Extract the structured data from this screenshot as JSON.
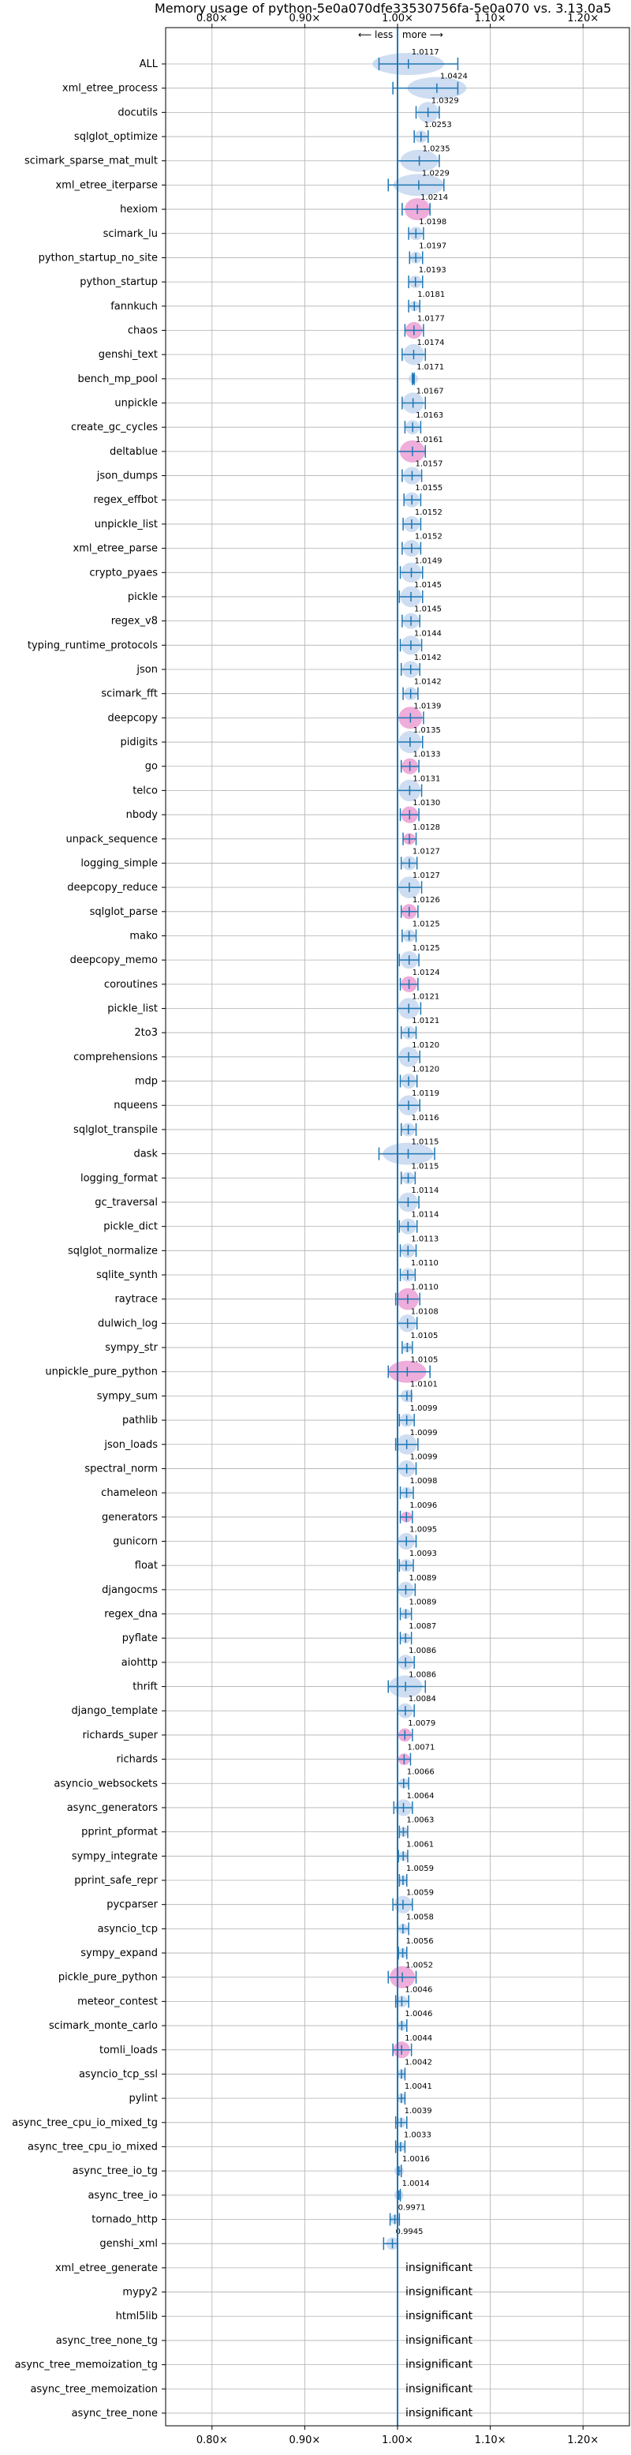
{
  "chart_data": {
    "type": "violin",
    "title": "Memory usage of python-5e0a070dfe33530756fa-5e0a070 vs. 3.13.0a5",
    "xlabel": "",
    "ylabel": "",
    "direction_label": "⟵ less | more ⟶",
    "xlim": [
      0.75,
      1.25
    ],
    "xticks": [
      0.8,
      0.9,
      1.0,
      1.1,
      1.2
    ],
    "xtick_labels": [
      "0.80×",
      "0.90×",
      "1.00×",
      "1.10×",
      "1.20×"
    ],
    "grid": true,
    "insignificant_label": "insignificant",
    "colors": {
      "default": "#1f77b4",
      "highlight": "#e377c2",
      "light": "#aec7e8"
    },
    "benchmarks": [
      {
        "name": "ALL",
        "value": 1.0117,
        "label": "1.0117",
        "err": [
          0.98,
          1.065
        ],
        "highlight": false
      },
      {
        "name": "xml_etree_process",
        "value": 1.0424,
        "label": "1.0424",
        "err": [
          0.995,
          1.065
        ],
        "highlight": false
      },
      {
        "name": "docutils",
        "value": 1.0329,
        "label": "1.0329",
        "err": [
          1.02,
          1.045
        ],
        "highlight": false
      },
      {
        "name": "sqlglot_optimize",
        "value": 1.0253,
        "label": "1.0253",
        "err": [
          1.018,
          1.033
        ],
        "highlight": false
      },
      {
        "name": "scimark_sparse_mat_mult",
        "value": 1.0235,
        "label": "1.0235",
        "err": [
          1.0,
          1.045
        ],
        "highlight": false
      },
      {
        "name": "xml_etree_iterparse",
        "value": 1.0229,
        "label": "1.0229",
        "err": [
          0.99,
          1.05
        ],
        "highlight": false
      },
      {
        "name": "hexiom",
        "value": 1.0214,
        "label": "1.0214",
        "err": [
          1.005,
          1.035
        ],
        "highlight": true
      },
      {
        "name": "scimark_lu",
        "value": 1.0198,
        "label": "1.0198",
        "err": [
          1.012,
          1.028
        ],
        "highlight": false
      },
      {
        "name": "python_startup_no_site",
        "value": 1.0197,
        "label": "1.0197",
        "err": [
          1.013,
          1.027
        ],
        "highlight": false
      },
      {
        "name": "python_startup",
        "value": 1.0193,
        "label": "1.0193",
        "err": [
          1.012,
          1.027
        ],
        "highlight": false
      },
      {
        "name": "fannkuch",
        "value": 1.0181,
        "label": "1.0181",
        "err": [
          1.012,
          1.024
        ],
        "highlight": false
      },
      {
        "name": "chaos",
        "value": 1.0177,
        "label": "1.0177",
        "err": [
          1.008,
          1.028
        ],
        "highlight": true
      },
      {
        "name": "genshi_text",
        "value": 1.0174,
        "label": "1.0174",
        "err": [
          1.005,
          1.03
        ],
        "highlight": false
      },
      {
        "name": "bench_mp_pool",
        "value": 1.0171,
        "label": "1.0171",
        "err": [
          1.016,
          1.018
        ],
        "highlight": false
      },
      {
        "name": "unpickle",
        "value": 1.0167,
        "label": "1.0167",
        "err": [
          1.005,
          1.03
        ],
        "highlight": false
      },
      {
        "name": "create_gc_cycles",
        "value": 1.0163,
        "label": "1.0163",
        "err": [
          1.008,
          1.025
        ],
        "highlight": false
      },
      {
        "name": "deltablue",
        "value": 1.0161,
        "label": "1.0161",
        "err": [
          1.0,
          1.03
        ],
        "highlight": true
      },
      {
        "name": "json_dumps",
        "value": 1.0157,
        "label": "1.0157",
        "err": [
          1.005,
          1.026
        ],
        "highlight": false
      },
      {
        "name": "regex_effbot",
        "value": 1.0155,
        "label": "1.0155",
        "err": [
          1.007,
          1.025
        ],
        "highlight": false
      },
      {
        "name": "unpickle_list",
        "value": 1.0152,
        "label": "1.0152",
        "err": [
          1.006,
          1.025
        ],
        "highlight": false
      },
      {
        "name": "xml_etree_parse",
        "value": 1.0152,
        "label": "1.0152",
        "err": [
          1.005,
          1.025
        ],
        "highlight": false
      },
      {
        "name": "crypto_pyaes",
        "value": 1.0149,
        "label": "1.0149",
        "err": [
          1.003,
          1.027
        ],
        "highlight": false
      },
      {
        "name": "pickle",
        "value": 1.0145,
        "label": "1.0145",
        "err": [
          1.002,
          1.027
        ],
        "highlight": false
      },
      {
        "name": "regex_v8",
        "value": 1.0145,
        "label": "1.0145",
        "err": [
          1.005,
          1.024
        ],
        "highlight": false
      },
      {
        "name": "typing_runtime_protocols",
        "value": 1.0144,
        "label": "1.0144",
        "err": [
          1.003,
          1.026
        ],
        "highlight": false
      },
      {
        "name": "json",
        "value": 1.0142,
        "label": "1.0142",
        "err": [
          1.004,
          1.024
        ],
        "highlight": false
      },
      {
        "name": "scimark_fft",
        "value": 1.0142,
        "label": "1.0142",
        "err": [
          1.006,
          1.022
        ],
        "highlight": false
      },
      {
        "name": "deepcopy",
        "value": 1.0139,
        "label": "1.0139",
        "err": [
          1.0,
          1.028
        ],
        "highlight": true
      },
      {
        "name": "pidigits",
        "value": 1.0135,
        "label": "1.0135",
        "err": [
          1.0,
          1.027
        ],
        "highlight": false
      },
      {
        "name": "go",
        "value": 1.0133,
        "label": "1.0133",
        "err": [
          1.004,
          1.023
        ],
        "highlight": true
      },
      {
        "name": "telco",
        "value": 1.0131,
        "label": "1.0131",
        "err": [
          1.0,
          1.026
        ],
        "highlight": false
      },
      {
        "name": "nbody",
        "value": 1.013,
        "label": "1.0130",
        "err": [
          1.003,
          1.023
        ],
        "highlight": true
      },
      {
        "name": "unpack_sequence",
        "value": 1.0128,
        "label": "1.0128",
        "err": [
          1.006,
          1.02
        ],
        "highlight": true
      },
      {
        "name": "logging_simple",
        "value": 1.0127,
        "label": "1.0127",
        "err": [
          1.004,
          1.021
        ],
        "highlight": false
      },
      {
        "name": "deepcopy_reduce",
        "value": 1.0127,
        "label": "1.0127",
        "err": [
          1.0,
          1.026
        ],
        "highlight": false
      },
      {
        "name": "sqlglot_parse",
        "value": 1.0126,
        "label": "1.0126",
        "err": [
          1.004,
          1.022
        ],
        "highlight": true
      },
      {
        "name": "mako",
        "value": 1.0125,
        "label": "1.0125",
        "err": [
          1.005,
          1.02
        ],
        "highlight": false
      },
      {
        "name": "deepcopy_memo",
        "value": 1.0125,
        "label": "1.0125",
        "err": [
          1.002,
          1.023
        ],
        "highlight": false
      },
      {
        "name": "coroutines",
        "value": 1.0124,
        "label": "1.0124",
        "err": [
          1.003,
          1.022
        ],
        "highlight": true
      },
      {
        "name": "pickle_list",
        "value": 1.0121,
        "label": "1.0121",
        "err": [
          1.0,
          1.025
        ],
        "highlight": false
      },
      {
        "name": "2to3",
        "value": 1.0121,
        "label": "1.0121",
        "err": [
          1.004,
          1.02
        ],
        "highlight": false
      },
      {
        "name": "comprehensions",
        "value": 1.012,
        "label": "1.0120",
        "err": [
          1.0,
          1.024
        ],
        "highlight": false
      },
      {
        "name": "mdp",
        "value": 1.012,
        "label": "1.0120",
        "err": [
          1.003,
          1.021
        ],
        "highlight": false
      },
      {
        "name": "nqueens",
        "value": 1.0119,
        "label": "1.0119",
        "err": [
          1.0,
          1.024
        ],
        "highlight": false
      },
      {
        "name": "sqlglot_transpile",
        "value": 1.0116,
        "label": "1.0116",
        "err": [
          1.004,
          1.02
        ],
        "highlight": false
      },
      {
        "name": "dask",
        "value": 1.0115,
        "label": "1.0115",
        "err": [
          0.98,
          1.04
        ],
        "highlight": false
      },
      {
        "name": "logging_format",
        "value": 1.0115,
        "label": "1.0115",
        "err": [
          1.004,
          1.019
        ],
        "highlight": false
      },
      {
        "name": "gc_traversal",
        "value": 1.0114,
        "label": "1.0114",
        "err": [
          1.0,
          1.023
        ],
        "highlight": false
      },
      {
        "name": "pickle_dict",
        "value": 1.0114,
        "label": "1.0114",
        "err": [
          1.002,
          1.021
        ],
        "highlight": false
      },
      {
        "name": "sqlglot_normalize",
        "value": 1.0113,
        "label": "1.0113",
        "err": [
          1.003,
          1.02
        ],
        "highlight": false
      },
      {
        "name": "sqlite_synth",
        "value": 1.011,
        "label": "1.0110",
        "err": [
          1.003,
          1.019
        ],
        "highlight": false
      },
      {
        "name": "raytrace",
        "value": 1.011,
        "label": "1.0110",
        "err": [
          0.998,
          1.024
        ],
        "highlight": true
      },
      {
        "name": "dulwich_log",
        "value": 1.0108,
        "label": "1.0108",
        "err": [
          1.0,
          1.021
        ],
        "highlight": false
      },
      {
        "name": "sympy_str",
        "value": 1.0105,
        "label": "1.0105",
        "err": [
          1.005,
          1.016
        ],
        "highlight": false
      },
      {
        "name": "unpickle_pure_python",
        "value": 1.0105,
        "label": "1.0105",
        "err": [
          0.99,
          1.035
        ],
        "highlight": true
      },
      {
        "name": "sympy_sum",
        "value": 1.0101,
        "label": "1.0101",
        "err": [
          1.0,
          1.015
        ],
        "highlight": false
      },
      {
        "name": "pathlib",
        "value": 1.0099,
        "label": "1.0099",
        "err": [
          1.002,
          1.018
        ],
        "highlight": false
      },
      {
        "name": "json_loads",
        "value": 1.0099,
        "label": "1.0099",
        "err": [
          0.998,
          1.022
        ],
        "highlight": false
      },
      {
        "name": "spectral_norm",
        "value": 1.0099,
        "label": "1.0099",
        "err": [
          1.0,
          1.02
        ],
        "highlight": false
      },
      {
        "name": "chameleon",
        "value": 1.0098,
        "label": "1.0098",
        "err": [
          1.003,
          1.017
        ],
        "highlight": false
      },
      {
        "name": "generators",
        "value": 1.0096,
        "label": "1.0096",
        "err": [
          1.003,
          1.016
        ],
        "highlight": true
      },
      {
        "name": "gunicorn",
        "value": 1.0095,
        "label": "1.0095",
        "err": [
          1.0,
          1.02
        ],
        "highlight": false
      },
      {
        "name": "float",
        "value": 1.0093,
        "label": "1.0093",
        "err": [
          1.002,
          1.017
        ],
        "highlight": false
      },
      {
        "name": "djangocms",
        "value": 1.0089,
        "label": "1.0089",
        "err": [
          1.0,
          1.019
        ],
        "highlight": false
      },
      {
        "name": "regex_dna",
        "value": 1.0089,
        "label": "1.0089",
        "err": [
          1.003,
          1.015
        ],
        "highlight": false
      },
      {
        "name": "pyflate",
        "value": 1.0087,
        "label": "1.0087",
        "err": [
          1.003,
          1.015
        ],
        "highlight": false
      },
      {
        "name": "aiohttp",
        "value": 1.0086,
        "label": "1.0086",
        "err": [
          1.0,
          1.018
        ],
        "highlight": false
      },
      {
        "name": "thrift",
        "value": 1.0086,
        "label": "1.0086",
        "err": [
          0.99,
          1.03
        ],
        "highlight": false
      },
      {
        "name": "django_template",
        "value": 1.0084,
        "label": "1.0084",
        "err": [
          1.0,
          1.018
        ],
        "highlight": false
      },
      {
        "name": "richards_super",
        "value": 1.0079,
        "label": "1.0079",
        "err": [
          1.0,
          1.016
        ],
        "highlight": true
      },
      {
        "name": "richards",
        "value": 1.0071,
        "label": "1.0071",
        "err": [
          1.0,
          1.014
        ],
        "highlight": true
      },
      {
        "name": "asyncio_websockets",
        "value": 1.0066,
        "label": "1.0066",
        "err": [
          1.0,
          1.012
        ],
        "highlight": false
      },
      {
        "name": "async_generators",
        "value": 1.0064,
        "label": "1.0064",
        "err": [
          0.996,
          1.016
        ],
        "highlight": false
      },
      {
        "name": "pprint_pformat",
        "value": 1.0063,
        "label": "1.0063",
        "err": [
          1.002,
          1.011
        ],
        "highlight": false
      },
      {
        "name": "sympy_integrate",
        "value": 1.0061,
        "label": "1.0061",
        "err": [
          1.001,
          1.011
        ],
        "highlight": false
      },
      {
        "name": "pprint_safe_repr",
        "value": 1.0059,
        "label": "1.0059",
        "err": [
          1.002,
          1.01
        ],
        "highlight": false
      },
      {
        "name": "pycparser",
        "value": 1.0059,
        "label": "1.0059",
        "err": [
          0.995,
          1.016
        ],
        "highlight": false
      },
      {
        "name": "asyncio_tcp",
        "value": 1.0058,
        "label": "1.0058",
        "err": [
          1.0,
          1.012
        ],
        "highlight": false
      },
      {
        "name": "sympy_expand",
        "value": 1.0056,
        "label": "1.0056",
        "err": [
          1.001,
          1.01
        ],
        "highlight": false
      },
      {
        "name": "pickle_pure_python",
        "value": 1.0052,
        "label": "1.0052",
        "err": [
          0.99,
          1.02
        ],
        "highlight": true
      },
      {
        "name": "meteor_contest",
        "value": 1.0046,
        "label": "1.0046",
        "err": [
          0.998,
          1.012
        ],
        "highlight": false
      },
      {
        "name": "scimark_monte_carlo",
        "value": 1.0046,
        "label": "1.0046",
        "err": [
          1.0,
          1.01
        ],
        "highlight": false
      },
      {
        "name": "tomli_loads",
        "value": 1.0044,
        "label": "1.0044",
        "err": [
          0.995,
          1.015
        ],
        "highlight": true
      },
      {
        "name": "asyncio_tcp_ssl",
        "value": 1.0042,
        "label": "1.0042",
        "err": [
          1.0,
          1.008
        ],
        "highlight": false
      },
      {
        "name": "pylint",
        "value": 1.0041,
        "label": "1.0041",
        "err": [
          1.0,
          1.008
        ],
        "highlight": false
      },
      {
        "name": "async_tree_cpu_io_mixed_tg",
        "value": 1.0039,
        "label": "1.0039",
        "err": [
          0.998,
          1.01
        ],
        "highlight": false
      },
      {
        "name": "async_tree_cpu_io_mixed",
        "value": 1.0033,
        "label": "1.0033",
        "err": [
          0.998,
          1.008
        ],
        "highlight": false
      },
      {
        "name": "async_tree_io_tg",
        "value": 1.0016,
        "label": "1.0016",
        "err": [
          1.0,
          1.004
        ],
        "highlight": false
      },
      {
        "name": "async_tree_io",
        "value": 1.0014,
        "label": "1.0014",
        "err": [
          1.0,
          1.003
        ],
        "highlight": false
      },
      {
        "name": "tornado_http",
        "value": 0.9971,
        "label": "0.9971",
        "err": [
          0.992,
          1.002
        ],
        "highlight": false
      },
      {
        "name": "genshi_xml",
        "value": 0.9945,
        "label": "0.9945",
        "err": [
          0.985,
          1.0
        ],
        "highlight": false
      },
      {
        "name": "xml_etree_generate",
        "value": null,
        "label": "insignificant",
        "err": null,
        "highlight": false
      },
      {
        "name": "mypy2",
        "value": null,
        "label": "insignificant",
        "err": null,
        "highlight": false
      },
      {
        "name": "html5lib",
        "value": null,
        "label": "insignificant",
        "err": null,
        "highlight": false
      },
      {
        "name": "async_tree_none_tg",
        "value": null,
        "label": "insignificant",
        "err": null,
        "highlight": false
      },
      {
        "name": "async_tree_memoization_tg",
        "value": null,
        "label": "insignificant",
        "err": null,
        "highlight": false
      },
      {
        "name": "async_tree_memoization",
        "value": null,
        "label": "insignificant",
        "err": null,
        "highlight": false
      },
      {
        "name": "async_tree_none",
        "value": null,
        "label": "insignificant",
        "err": null,
        "highlight": false
      }
    ]
  }
}
